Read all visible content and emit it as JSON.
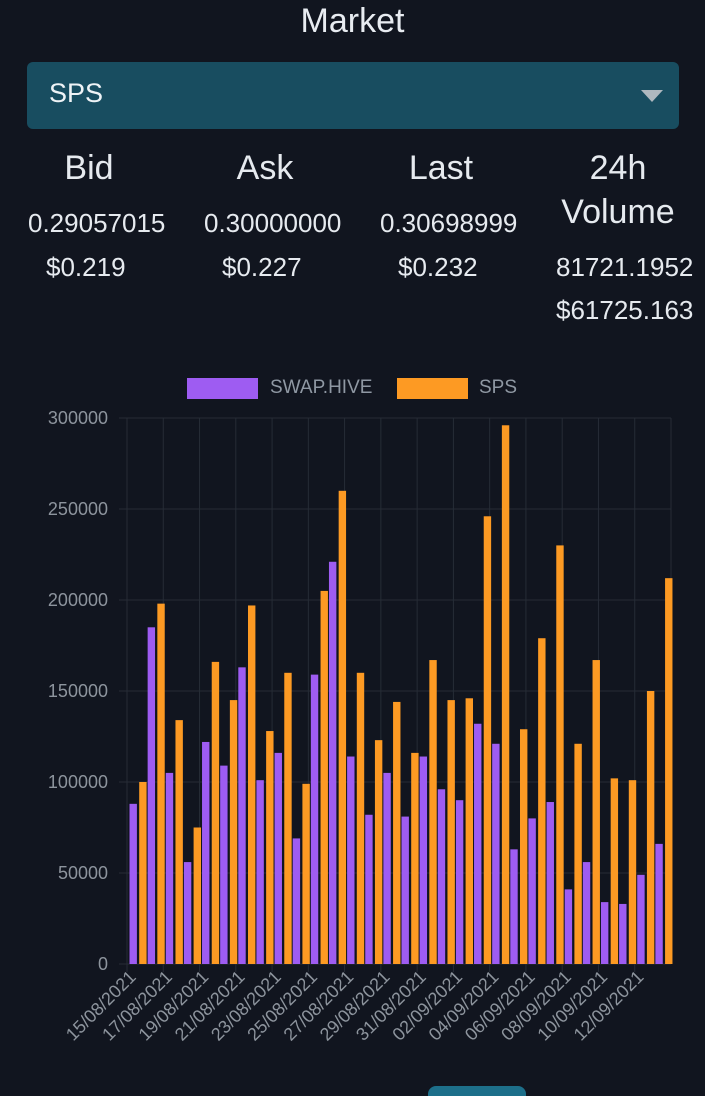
{
  "header": {
    "title": "Market"
  },
  "market_select": {
    "value": "SPS"
  },
  "stats": {
    "bid": {
      "label": "Bid",
      "price": "0.29057015",
      "usd": "$0.219"
    },
    "ask": {
      "label": "Ask",
      "price": "0.30000000",
      "usd": "$0.227"
    },
    "last": {
      "label": "Last",
      "price": "0.30698999",
      "usd": "$0.232"
    },
    "volume": {
      "label_line1": "24h",
      "label_line2": "Volume",
      "amount": "81721.1952",
      "usd": "$61725.163"
    }
  },
  "colors": {
    "swap_hive": "#9e5cf2",
    "sps": "#fd9a23",
    "background": "#11151f"
  },
  "chart_data": {
    "type": "bar",
    "categories": [
      "15/08/2021",
      "16/08/2021",
      "17/08/2021",
      "18/08/2021",
      "19/08/2021",
      "20/08/2021",
      "21/08/2021",
      "22/08/2021",
      "23/08/2021",
      "24/08/2021",
      "25/08/2021",
      "26/08/2021",
      "27/08/2021",
      "28/08/2021",
      "29/08/2021",
      "30/08/2021",
      "31/08/2021",
      "01/09/2021",
      "02/09/2021",
      "03/09/2021",
      "04/09/2021",
      "05/09/2021",
      "06/09/2021",
      "07/09/2021",
      "08/09/2021",
      "09/09/2021",
      "10/09/2021",
      "11/09/2021",
      "12/09/2021",
      "13/09/2021"
    ],
    "tick_labels": [
      "15/08/2021",
      "17/08/2021",
      "19/08/2021",
      "21/08/2021",
      "23/08/2021",
      "25/08/2021",
      "27/08/2021",
      "29/08/2021",
      "31/08/2021",
      "02/09/2021",
      "04/09/2021",
      "06/09/2021",
      "08/09/2021",
      "10/09/2021",
      "12/09/2021"
    ],
    "series": [
      {
        "name": "SWAP.HIVE",
        "color": "#9e5cf2",
        "values": [
          88000,
          185000,
          105000,
          56000,
          122000,
          109000,
          163000,
          101000,
          116000,
          69000,
          159000,
          221000,
          114000,
          82000,
          105000,
          81000,
          114000,
          96000,
          90000,
          132000,
          121000,
          63000,
          80000,
          89000,
          41000,
          56000,
          34000,
          33000,
          49000,
          66000
        ]
      },
      {
        "name": "SPS",
        "color": "#fd9a23",
        "values": [
          100000,
          198000,
          134000,
          75000,
          166000,
          145000,
          197000,
          128000,
          160000,
          99000,
          205000,
          260000,
          160000,
          123000,
          144000,
          116000,
          167000,
          145000,
          146000,
          246000,
          296000,
          129000,
          179000,
          230000,
          121000,
          167000,
          102000,
          101000,
          150000,
          212000
        ]
      }
    ],
    "yticks": [
      0,
      50000,
      100000,
      150000,
      200000,
      250000,
      300000
    ],
    "ylim": [
      0,
      300000
    ],
    "grid": true,
    "legend": "top-center"
  }
}
